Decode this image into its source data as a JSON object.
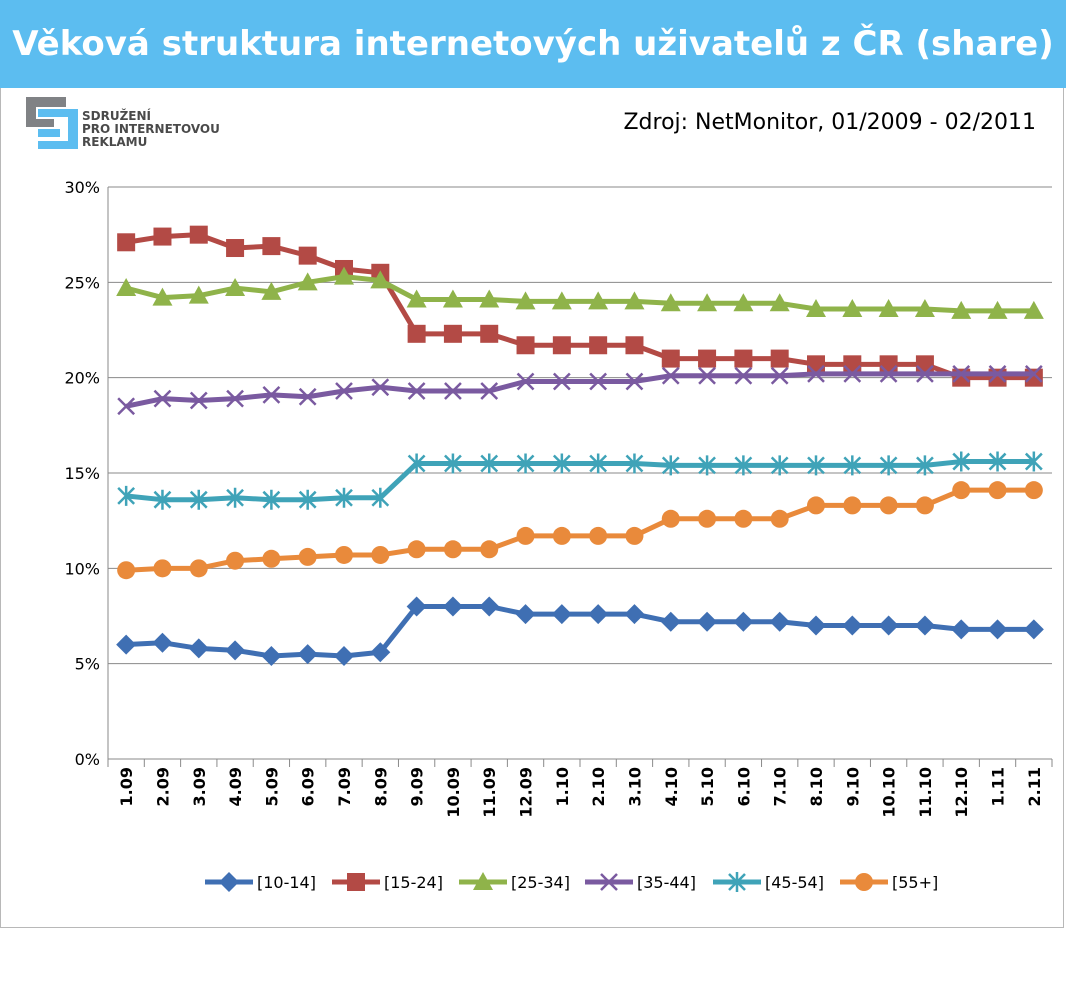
{
  "title": "Věková struktura internetových uživatelů z ČR (share)",
  "logo": {
    "lines": [
      "SDRUŽENÍ",
      "PRO INTERNETOVOU",
      "REKLAMU"
    ],
    "colors": {
      "blue": "#5cbdf0",
      "gray": "#808285"
    }
  },
  "source": "Zdroj: NetMonitor, 01/2009 - 02/2011",
  "chart_data": {
    "type": "line",
    "categories": [
      "1.09",
      "2.09",
      "3.09",
      "4.09",
      "5.09",
      "6.09",
      "7.09",
      "8.09",
      "9.09",
      "10.09",
      "11.09",
      "12.09",
      "1.10",
      "2.10",
      "3.10",
      "4.10",
      "5.10",
      "6.10",
      "7.10",
      "8.10",
      "9.10",
      "10.10",
      "11.10",
      "12.10",
      "1.11",
      "2.11"
    ],
    "ylim": [
      0,
      30
    ],
    "yticks": [
      0,
      5,
      10,
      15,
      20,
      25,
      30
    ],
    "ytick_labels": [
      "0%",
      "5%",
      "10%",
      "15%",
      "20%",
      "25%",
      "30%"
    ],
    "grid": true,
    "legend": "bottom",
    "series": [
      {
        "name": "[10-14]",
        "color": "#3f6fb3",
        "marker": "diamond",
        "values": [
          6.0,
          6.1,
          5.8,
          5.7,
          5.4,
          5.5,
          5.4,
          5.6,
          8.0,
          8.0,
          8.0,
          7.6,
          7.6,
          7.6,
          7.6,
          7.2,
          7.2,
          7.2,
          7.2,
          7.0,
          7.0,
          7.0,
          7.0,
          6.8,
          6.8,
          6.8
        ]
      },
      {
        "name": "[15-24]",
        "color": "#b34a45",
        "marker": "square",
        "values": [
          27.1,
          27.4,
          27.5,
          26.8,
          26.9,
          26.4,
          25.7,
          25.5,
          22.3,
          22.3,
          22.3,
          21.7,
          21.7,
          21.7,
          21.7,
          21.0,
          21.0,
          21.0,
          21.0,
          20.7,
          20.7,
          20.7,
          20.7,
          20.0,
          20.0,
          20.0
        ]
      },
      {
        "name": "[25-34]",
        "color": "#8fb34a",
        "marker": "triangle",
        "values": [
          24.7,
          24.2,
          24.3,
          24.7,
          24.5,
          25.0,
          25.3,
          25.1,
          24.1,
          24.1,
          24.1,
          24.0,
          24.0,
          24.0,
          24.0,
          23.9,
          23.9,
          23.9,
          23.9,
          23.6,
          23.6,
          23.6,
          23.6,
          23.5,
          23.5,
          23.5
        ]
      },
      {
        "name": "[35-44]",
        "color": "#7a5aa0",
        "marker": "x",
        "values": [
          18.5,
          18.9,
          18.8,
          18.9,
          19.1,
          19.0,
          19.3,
          19.5,
          19.3,
          19.3,
          19.3,
          19.8,
          19.8,
          19.8,
          19.8,
          20.1,
          20.1,
          20.1,
          20.1,
          20.2,
          20.2,
          20.2,
          20.2,
          20.2,
          20.2,
          20.2
        ]
      },
      {
        "name": "[45-54]",
        "color": "#3fa3b8",
        "marker": "asterisk",
        "values": [
          13.8,
          13.6,
          13.6,
          13.7,
          13.6,
          13.6,
          13.7,
          13.7,
          15.5,
          15.5,
          15.5,
          15.5,
          15.5,
          15.5,
          15.5,
          15.4,
          15.4,
          15.4,
          15.4,
          15.4,
          15.4,
          15.4,
          15.4,
          15.6,
          15.6,
          15.6
        ]
      },
      {
        "name": "[55+]",
        "color": "#e98a3b",
        "marker": "circle",
        "values": [
          9.9,
          10.0,
          10.0,
          10.4,
          10.5,
          10.6,
          10.7,
          10.7,
          11.0,
          11.0,
          11.0,
          11.7,
          11.7,
          11.7,
          11.7,
          12.6,
          12.6,
          12.6,
          12.6,
          13.3,
          13.3,
          13.3,
          13.3,
          14.1,
          14.1,
          14.1
        ]
      }
    ]
  }
}
